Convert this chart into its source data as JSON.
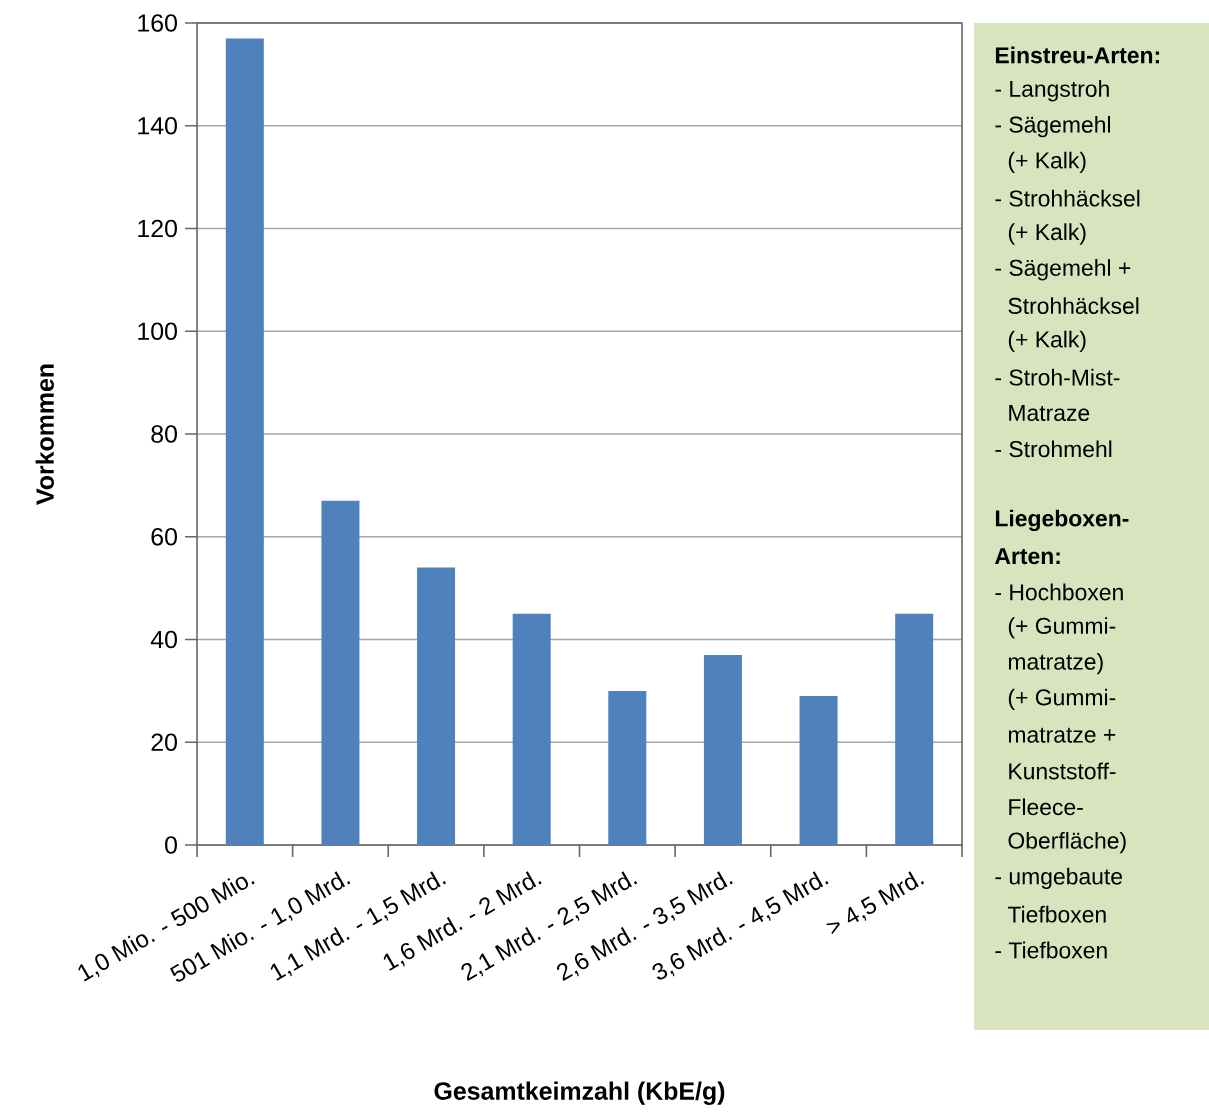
{
  "chart_data": {
    "type": "bar",
    "categories": [
      "1,0 Mio. - 500 Mio.",
      "501 Mio. - 1,0 Mrd.",
      "1,1 Mrd. - 1,5 Mrd.",
      "1,6 Mrd. - 2 Mrd.",
      "2,1 Mrd. - 2,5 Mrd.",
      "2,6 Mrd. - 3,5 Mrd.",
      "3,6 Mrd. - 4,5 Mrd.",
      "> 4,5 Mrd."
    ],
    "values": [
      157,
      67,
      54,
      45,
      30,
      37,
      29,
      45
    ],
    "color": "#4f81bd",
    "xlabel": "Gesamtkeimzahl (KbE/g)",
    "ylabel": "Vorkommen",
    "ylim": [
      0,
      160
    ],
    "yticks": [
      0,
      20,
      40,
      60,
      80,
      100,
      120,
      140,
      160
    ],
    "grid": "y",
    "annotations": [
      "Einstreu-Arten:",
      "- Langstroh",
      "- Sägemehl",
      "(+ Kalk)",
      "- Strohhäcksel",
      "(+ Kalk)",
      "- Sägemehl +",
      "Strohhäcksel",
      "(+ Kalk)",
      "- Stroh-Mist-",
      "Matraze",
      "- Strohmehl",
      "Liegeboxen-",
      "Arten:",
      "- Hochboxen",
      "(+ Gummi-",
      "matratze)",
      "(+ Gummi-",
      "matratze +",
      "Kunststoff-",
      "Fleece-",
      "Oberfläche)",
      "- umgebaute",
      "Tiefboxen",
      "- Tiefboxen"
    ]
  }
}
